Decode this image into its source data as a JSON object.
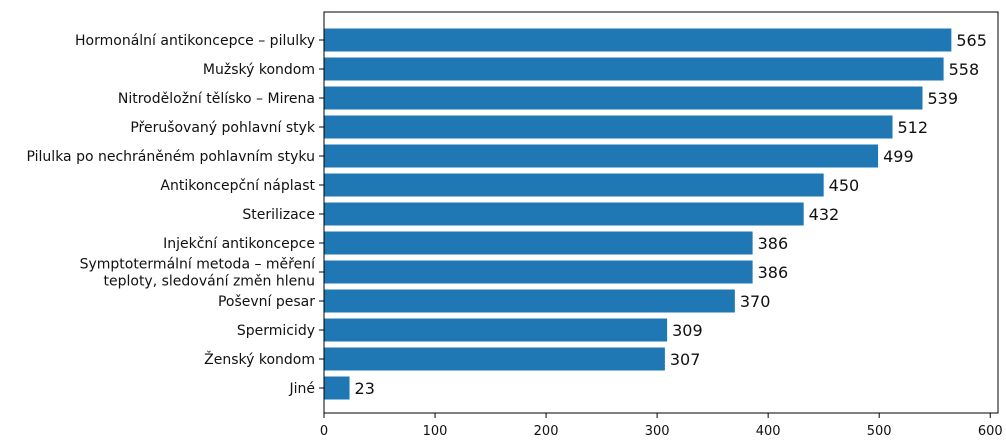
{
  "chart_data": {
    "type": "bar",
    "orientation": "horizontal",
    "categories": [
      "Hormonální antikoncepce – pilulky",
      "Mužský kondom",
      "Nitroděložní tělísko – Mirena",
      "Přerušovaný pohlavní styk",
      "Pilulka po nechráněném pohlavním styku",
      "Antikoncepční náplast",
      "Sterilizace",
      "Injekční antikoncepce",
      [
        "Symptotermální metoda – měření",
        "teploty, sledování změn hlenu"
      ],
      "Poševní pesar",
      "Spermicidy",
      "Ženský kondom",
      "Jiné"
    ],
    "values": [
      565,
      558,
      539,
      512,
      499,
      450,
      432,
      386,
      386,
      370,
      309,
      307,
      23
    ],
    "xlim": [
      0,
      607
    ],
    "xticks": [
      0,
      100,
      200,
      300,
      400,
      500,
      600
    ],
    "title": "",
    "xlabel": "",
    "ylabel": "",
    "grid": false,
    "bar_color": "#1f77b4"
  }
}
